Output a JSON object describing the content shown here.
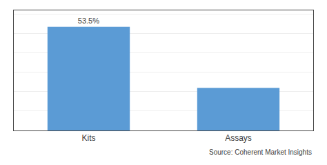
{
  "chart_data": {
    "type": "bar",
    "categories": [
      "Kits",
      "Assays"
    ],
    "values": [
      53.5,
      22.0
    ],
    "value_labels": [
      "53.5%",
      null
    ],
    "color": "#5B9BD5",
    "ylim": [
      0,
      62
    ],
    "yticks": [
      0,
      10,
      20,
      30,
      40,
      50,
      60
    ],
    "grid": true,
    "tick_labels": "x",
    "annotation": "Source: Coherent Market Insights"
  }
}
